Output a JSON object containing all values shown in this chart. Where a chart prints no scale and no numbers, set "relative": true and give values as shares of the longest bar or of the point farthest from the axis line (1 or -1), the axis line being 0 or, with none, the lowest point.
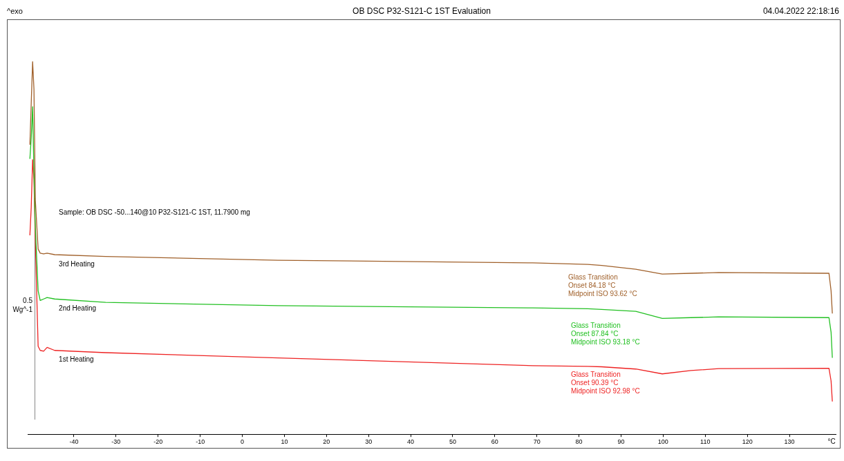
{
  "chart_data": {
    "type": "line",
    "title": "OB DSC P32-S121-C 1ST Evaluation",
    "xlabel": "°C",
    "ylabel": "Wg^-1",
    "relative": true,
    "xlim": [
      -51,
      141
    ],
    "xticks": [
      -40,
      -30,
      -20,
      -10,
      0,
      10,
      20,
      30,
      40,
      50,
      60,
      70,
      80,
      90,
      100,
      110,
      120,
      130
    ],
    "legend": false,
    "marker": "none",
    "line_style": "solid",
    "x": [
      -50.47,
      -50.15,
      -49.82,
      -49.5,
      -49.17,
      -48.51,
      -48.02,
      -47.2,
      -46.38,
      -44.58,
      -32.47,
      8.45,
      69.0,
      82.1,
      85.4,
      93.5,
      99.8,
      106.6,
      113.2,
      139.4,
      139.9,
      140.2
    ],
    "series": [
      {
        "name": "3rd Heating",
        "color": "#a0602a",
        "values": [
          0.777,
          0.888,
          1,
          0.926,
          0.628,
          0.497,
          0.486,
          0.484,
          0.486,
          0.482,
          0.477,
          0.467,
          0.46,
          0.456,
          0.453,
          0.443,
          0.43,
          0.432,
          0.434,
          0.432,
          0.385,
          0.324
        ]
      },
      {
        "name": "2nd Heating",
        "color": "#22c022",
        "values": [
          0.739,
          0.795,
          0.879,
          0.702,
          0.553,
          0.385,
          0.359,
          0.363,
          0.367,
          0.363,
          0.354,
          0.345,
          0.339,
          0.337,
          0.335,
          0.33,
          0.311,
          0.313,
          0.315,
          0.313,
          0.274,
          0.205
        ]
      },
      {
        "name": "1st Heating",
        "color": "#ee2222",
        "values": [
          0.534,
          0.609,
          0.737,
          0.683,
          0.516,
          0.236,
          0.225,
          0.223,
          0.233,
          0.225,
          0.219,
          0.205,
          0.184,
          0.182,
          0.181,
          0.175,
          0.162,
          0.171,
          0.176,
          0.177,
          0.143,
          0.088
        ]
      }
    ],
    "annotations": [
      "^exo",
      "04.04.2022 22:18:16",
      "Sample: OB DSC -50...140@10 P32-S121-C 1ST, 11.7900 mg",
      "0.5",
      "Glass Transition",
      "Onset 84.18 °C",
      "Midpoint ISO 93.62 °C",
      "Glass Transition",
      "Onset 87.84 °C",
      "Midpoint ISO 93.18 °C",
      "Glass Transition",
      "Onset 90.39 °C",
      "Midpoint ISO 92.98 °C"
    ]
  }
}
